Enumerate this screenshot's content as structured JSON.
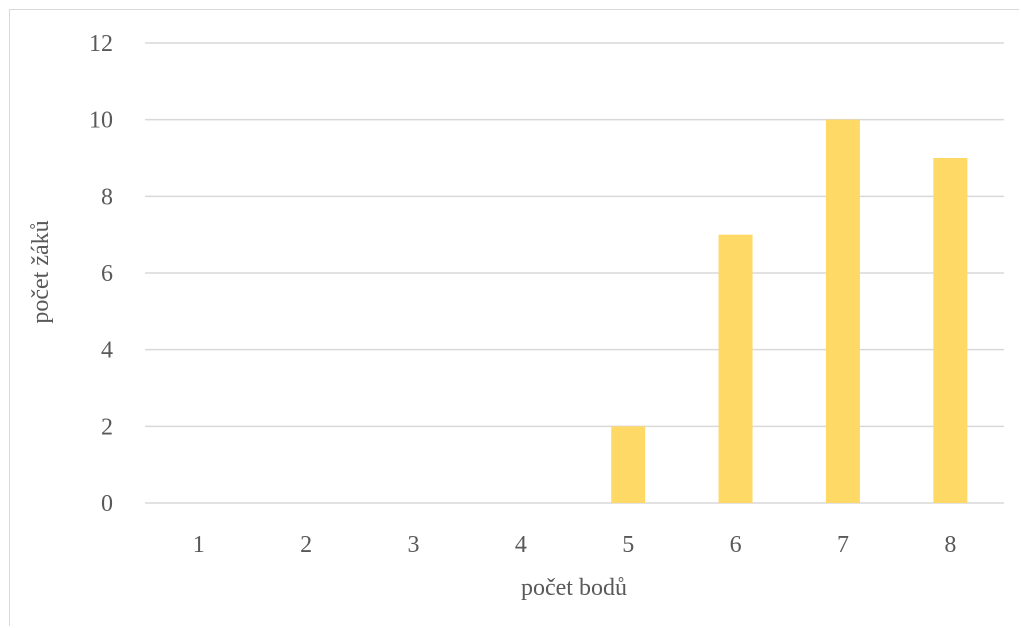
{
  "chart_data": {
    "type": "bar",
    "categories": [
      "1",
      "2",
      "3",
      "4",
      "5",
      "6",
      "7",
      "8"
    ],
    "values": [
      0,
      0,
      0,
      0,
      2,
      7,
      10,
      9
    ],
    "xlabel": "počet bodů",
    "ylabel": "počet žáků",
    "ylim": [
      0,
      12
    ],
    "yticks": [
      0,
      2,
      4,
      6,
      8,
      10,
      12
    ],
    "grid": true,
    "bar_color": "#ffd966",
    "grid_color": "#d9d9d9",
    "text_color": "#595959"
  }
}
